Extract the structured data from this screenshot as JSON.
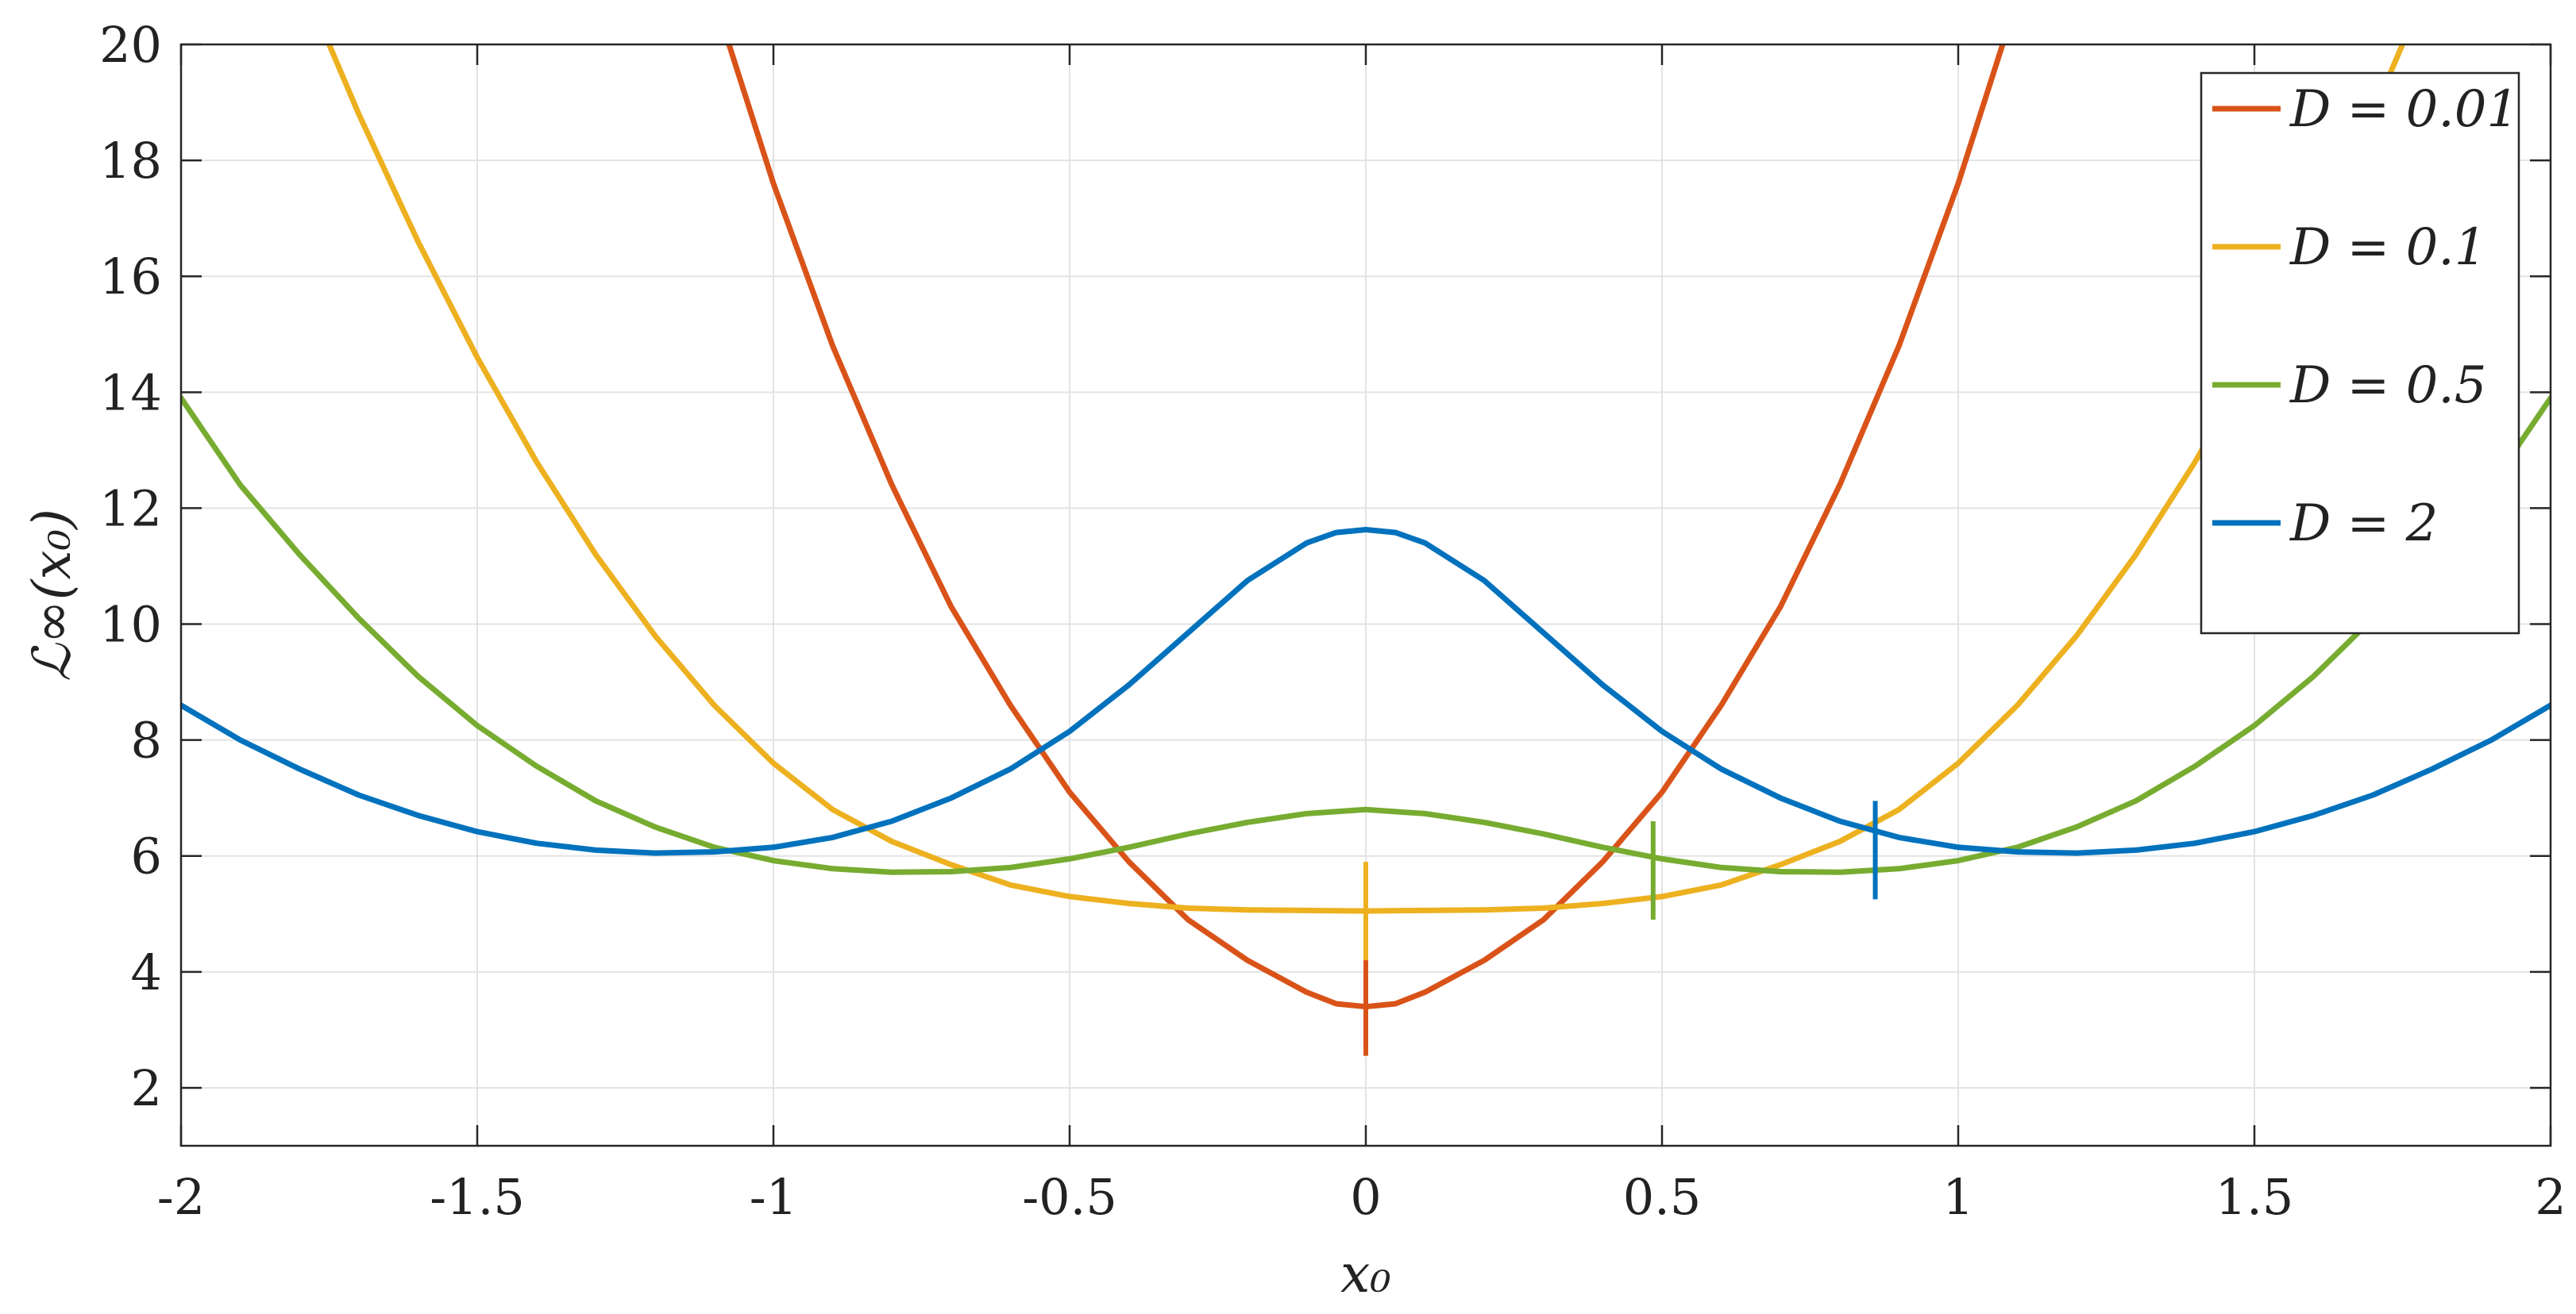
{
  "chart_data": {
    "type": "line",
    "xlabel": "x₀",
    "ylabel": "ℒ∞(x₀)",
    "xlim": [
      -2,
      2
    ],
    "ylim": [
      1,
      20
    ],
    "xticks": [
      -2,
      -1.5,
      -1,
      -0.5,
      0,
      0.5,
      1,
      1.5,
      2
    ],
    "xtick_labels": [
      "-2",
      "-1.5",
      "-1",
      "-0.5",
      "0",
      "0.5",
      "1",
      "1.5",
      "2"
    ],
    "yticks": [
      2,
      4,
      6,
      8,
      10,
      12,
      14,
      16,
      18,
      20
    ],
    "ytick_labels": [
      "2",
      "4",
      "6",
      "8",
      "10",
      "12",
      "14",
      "16",
      "18",
      "20"
    ],
    "grid": true,
    "legend_position": "top-right",
    "series": [
      {
        "name": "D = 0.01",
        "color": "#D95319",
        "x": [
          -1.1,
          -1.0,
          -0.9,
          -0.8,
          -0.7,
          -0.6,
          -0.5,
          -0.4,
          -0.3,
          -0.2,
          -0.1,
          -0.05,
          0,
          0.05,
          0.1,
          0.2,
          0.3,
          0.4,
          0.5,
          0.6,
          0.7,
          0.8,
          0.9,
          1.0,
          1.1
        ],
        "y": [
          20.8,
          17.6,
          14.8,
          12.4,
          10.3,
          8.6,
          7.1,
          5.9,
          4.9,
          4.2,
          3.65,
          3.45,
          3.4,
          3.45,
          3.65,
          4.2,
          4.9,
          5.9,
          7.1,
          8.6,
          10.3,
          12.4,
          14.8,
          17.6,
          20.8
        ],
        "marker_x": 0,
        "marker_y": 3.4
      },
      {
        "name": "D = 0.1",
        "color": "#EDB120",
        "x": [
          -1.8,
          -1.7,
          -1.6,
          -1.5,
          -1.4,
          -1.3,
          -1.2,
          -1.1,
          -1.0,
          -0.9,
          -0.8,
          -0.7,
          -0.6,
          -0.5,
          -0.4,
          -0.3,
          -0.2,
          -0.1,
          0,
          0.1,
          0.2,
          0.3,
          0.4,
          0.5,
          0.6,
          0.7,
          0.8,
          0.9,
          1.0,
          1.1,
          1.2,
          1.3,
          1.4,
          1.5,
          1.6,
          1.7,
          1.8
        ],
        "y": [
          21.2,
          18.8,
          16.6,
          14.6,
          12.8,
          11.2,
          9.8,
          8.6,
          7.6,
          6.8,
          6.25,
          5.85,
          5.5,
          5.3,
          5.18,
          5.1,
          5.07,
          5.06,
          5.05,
          5.06,
          5.07,
          5.1,
          5.18,
          5.3,
          5.5,
          5.85,
          6.25,
          6.8,
          7.6,
          8.6,
          9.8,
          11.2,
          12.8,
          14.6,
          16.6,
          18.8,
          21.2
        ],
        "marker_x": 0,
        "marker_y": 5.05
      },
      {
        "name": "D = 0.5",
        "color": "#77AC30",
        "x": [
          -2.0,
          -1.9,
          -1.8,
          -1.7,
          -1.6,
          -1.5,
          -1.4,
          -1.3,
          -1.2,
          -1.1,
          -1.0,
          -0.9,
          -0.8,
          -0.7,
          -0.6,
          -0.5,
          -0.4,
          -0.3,
          -0.2,
          -0.1,
          0,
          0.1,
          0.2,
          0.3,
          0.4,
          0.5,
          0.6,
          0.7,
          0.8,
          0.9,
          1.0,
          1.1,
          1.2,
          1.3,
          1.4,
          1.5,
          1.6,
          1.7,
          1.8,
          1.9,
          2.0
        ],
        "y": [
          13.9,
          12.4,
          11.2,
          10.1,
          9.1,
          8.25,
          7.55,
          6.95,
          6.5,
          6.15,
          5.92,
          5.78,
          5.72,
          5.73,
          5.8,
          5.95,
          6.15,
          6.38,
          6.58,
          6.73,
          6.8,
          6.73,
          6.58,
          6.38,
          6.15,
          5.95,
          5.8,
          5.73,
          5.72,
          5.78,
          5.92,
          6.15,
          6.5,
          6.95,
          7.55,
          8.25,
          9.1,
          10.1,
          11.2,
          12.4,
          13.9
        ],
        "marker_x": 0.485,
        "marker_y": 5.75
      },
      {
        "name": "D = 2",
        "color": "#0072BD",
        "x": [
          -2.0,
          -1.9,
          -1.8,
          -1.7,
          -1.6,
          -1.5,
          -1.4,
          -1.3,
          -1.2,
          -1.1,
          -1.0,
          -0.9,
          -0.8,
          -0.7,
          -0.6,
          -0.5,
          -0.4,
          -0.3,
          -0.2,
          -0.1,
          -0.05,
          0,
          0.05,
          0.1,
          0.2,
          0.3,
          0.4,
          0.5,
          0.6,
          0.7,
          0.8,
          0.9,
          1.0,
          1.1,
          1.2,
          1.3,
          1.4,
          1.5,
          1.6,
          1.7,
          1.8,
          1.9,
          2.0
        ],
        "y": [
          8.6,
          8.0,
          7.5,
          7.05,
          6.7,
          6.42,
          6.22,
          6.1,
          6.05,
          6.07,
          6.15,
          6.32,
          6.6,
          7.0,
          7.5,
          8.15,
          8.95,
          9.85,
          10.75,
          11.4,
          11.58,
          11.63,
          11.58,
          11.4,
          10.75,
          9.85,
          8.95,
          8.15,
          7.5,
          7.0,
          6.6,
          6.32,
          6.15,
          6.07,
          6.05,
          6.1,
          6.22,
          6.42,
          6.7,
          7.05,
          7.5,
          8.0,
          8.6
        ],
        "marker_x": 0.86,
        "marker_y": 6.1
      }
    ]
  }
}
